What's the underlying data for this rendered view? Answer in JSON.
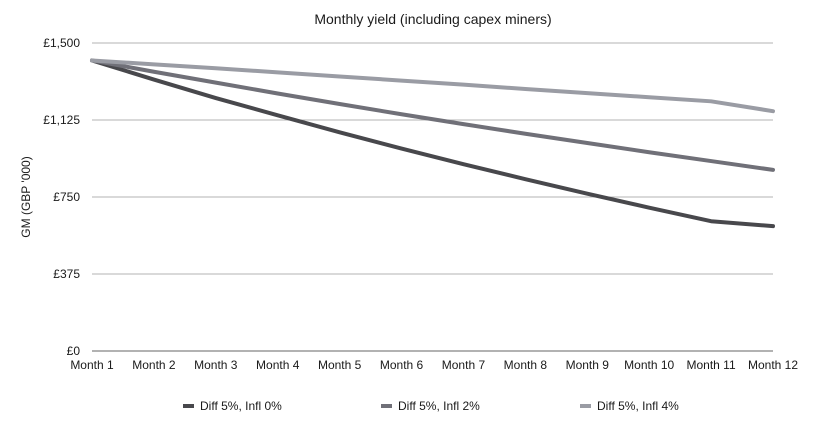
{
  "chart_data": {
    "type": "line",
    "title": "Monthly yield (including capex miners)",
    "xlabel": "",
    "ylabel": "GM (GBP '000)",
    "categories": [
      "Month 1",
      "Month 2",
      "Month 3",
      "Month 4",
      "Month 5",
      "Month 6",
      "Month 7",
      "Month 8",
      "Month 9",
      "Month 10",
      "Month 11",
      "Month 12"
    ],
    "yticks": [
      "£0",
      "£375",
      "£750",
      "£1,125",
      "£1,500"
    ],
    "ytick_values": [
      0,
      375,
      750,
      1125,
      1500
    ],
    "ylim": [
      0,
      1500
    ],
    "grid": true,
    "legend_position": "bottom",
    "series": [
      {
        "name": "Diff 5%, Infl 0%",
        "color": "#48484c",
        "values": [
          1415,
          1322,
          1232,
          1148,
          1065,
          986,
          910,
          837,
          766,
          698,
          632,
          608
        ]
      },
      {
        "name": "Diff 5%, Infl 2%",
        "color": "#707078",
        "values": [
          1415,
          1360,
          1307,
          1254,
          1203,
          1153,
          1105,
          1058,
          1013,
          968,
          925,
          882
        ]
      },
      {
        "name": "Diff 5%, Infl 4%",
        "color": "#9a9ca4",
        "values": [
          1415,
          1396,
          1377,
          1357,
          1337,
          1317,
          1297,
          1276,
          1256,
          1236,
          1216,
          1168
        ]
      }
    ]
  }
}
